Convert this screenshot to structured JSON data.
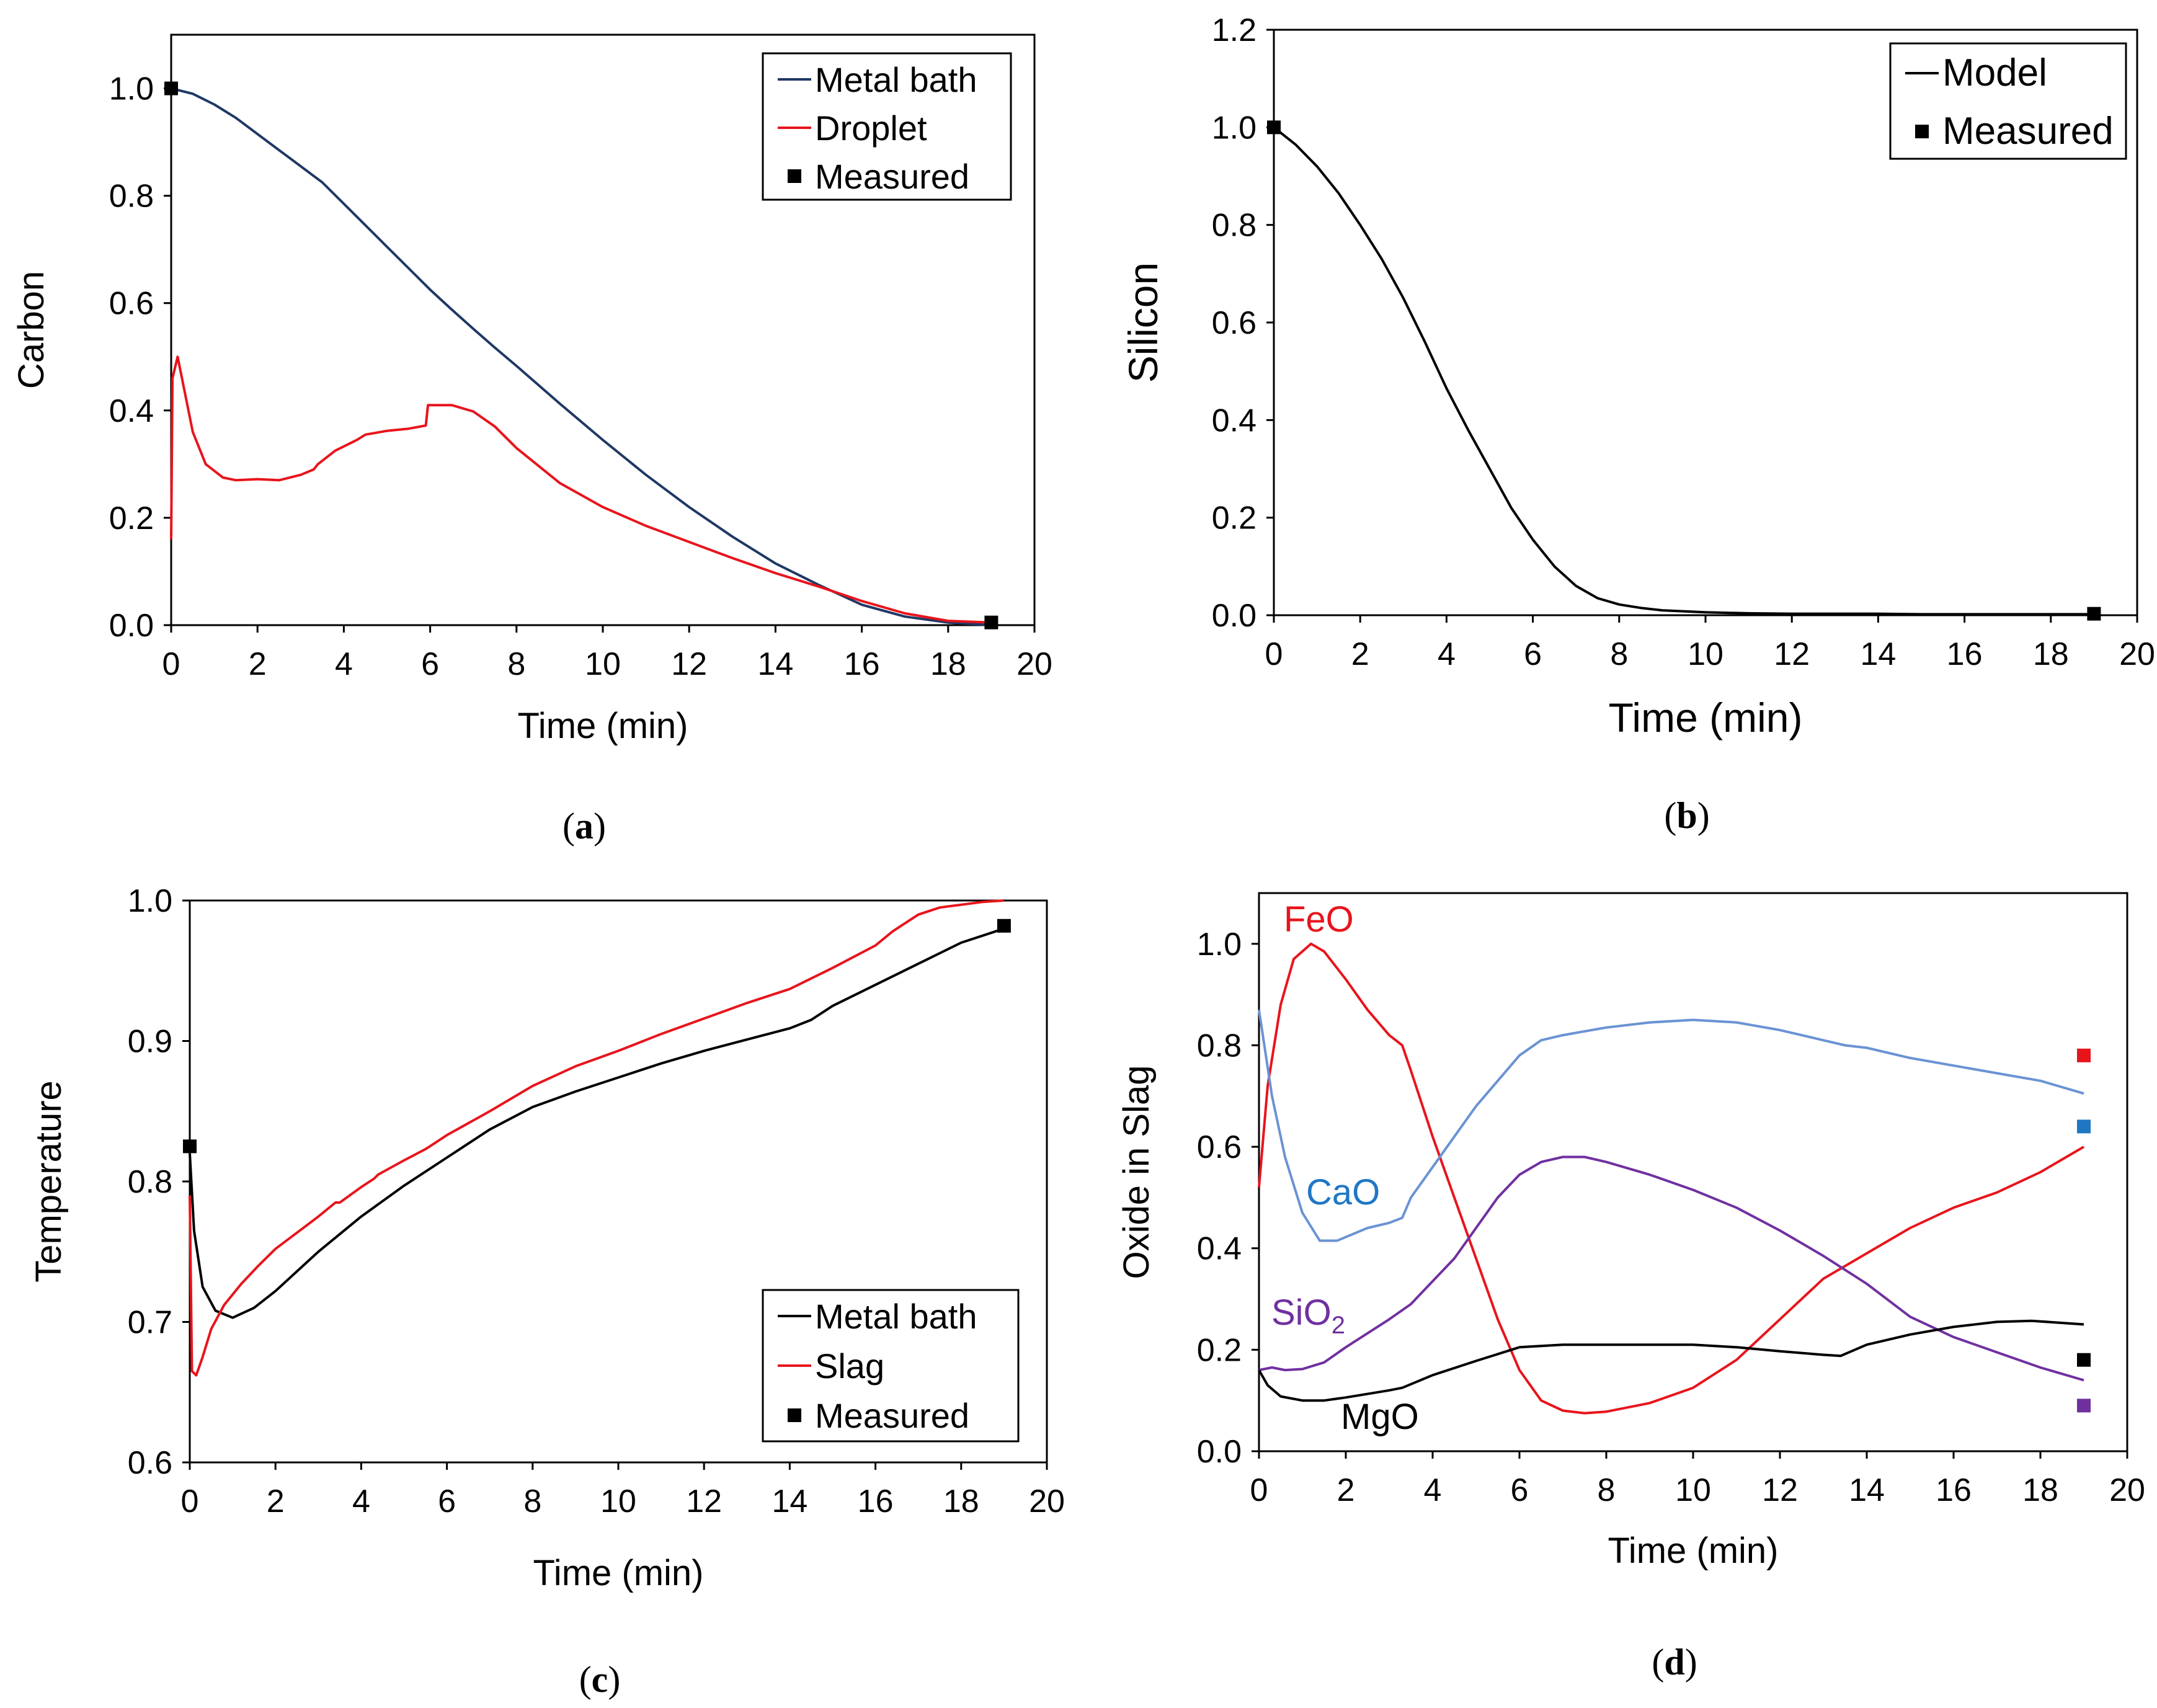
{
  "colors": {
    "navy": "#1f3864",
    "red": "#e8141c",
    "black": "#000000",
    "lightblue": "#6a93d4",
    "purple": "#7030a0",
    "marker_blue": "#1f77c4"
  },
  "chart_data": [
    {
      "type": "line",
      "panel": "(a)",
      "caption_letter": "a",
      "xlabel": "Time (min)",
      "ylabel": "Carbon",
      "xlim": [
        0,
        20
      ],
      "ylim": [
        0,
        1.1
      ],
      "x_ticks": [
        "0",
        "2",
        "4",
        "6",
        "8",
        "10",
        "12",
        "14",
        "16",
        "18",
        "20"
      ],
      "y_ticks": [
        "0.0",
        "0.2",
        "0.4",
        "0.6",
        "0.8",
        "1.0"
      ],
      "legend_position": "top-right",
      "series": [
        {
          "name": "Metal bath",
          "color": "#1f3864",
          "x": [
            0,
            0.5,
            1,
            1.5,
            2,
            2.5,
            3,
            3.5,
            4,
            4.5,
            5,
            5.5,
            6,
            6.5,
            7,
            7.5,
            8,
            9,
            10,
            11,
            12,
            13,
            14,
            15,
            16,
            17,
            18,
            19
          ],
          "y": [
            1.0,
            0.99,
            0.97,
            0.945,
            0.915,
            0.885,
            0.855,
            0.825,
            0.785,
            0.745,
            0.705,
            0.665,
            0.625,
            0.588,
            0.552,
            0.517,
            0.483,
            0.413,
            0.345,
            0.28,
            0.22,
            0.165,
            0.115,
            0.075,
            0.038,
            0.016,
            0.005,
            0.0
          ]
        },
        {
          "name": "Droplet",
          "color": "#e8141c",
          "x": [
            0,
            0.03,
            0.15,
            0.3,
            0.5,
            0.8,
            1.2,
            1.5,
            2,
            2.5,
            3,
            3.3,
            3.4,
            3.8,
            4.3,
            4.5,
            5,
            5.5,
            5.9,
            5.95,
            6.5,
            7,
            7.5,
            8,
            9,
            10,
            11,
            12,
            13,
            14,
            15,
            16,
            17,
            18,
            19
          ],
          "y": [
            0.16,
            0.46,
            0.5,
            0.44,
            0.36,
            0.3,
            0.275,
            0.27,
            0.272,
            0.27,
            0.28,
            0.29,
            0.3,
            0.325,
            0.345,
            0.355,
            0.362,
            0.366,
            0.372,
            0.41,
            0.41,
            0.398,
            0.37,
            0.33,
            0.265,
            0.22,
            0.185,
            0.155,
            0.125,
            0.097,
            0.072,
            0.045,
            0.022,
            0.008,
            0.005
          ]
        }
      ],
      "measured": {
        "name": "Measured",
        "x": [
          0,
          19
        ],
        "y": [
          1.0,
          0.005
        ]
      }
    },
    {
      "type": "line",
      "panel": "(b)",
      "caption_letter": "b",
      "xlabel": "Time (min)",
      "ylabel": "Silicon",
      "xlim": [
        0,
        20
      ],
      "ylim": [
        0,
        1.2
      ],
      "x_ticks": [
        "0",
        "2",
        "4",
        "6",
        "8",
        "10",
        "12",
        "14",
        "16",
        "18",
        "20"
      ],
      "y_ticks": [
        "0.0",
        "0.2",
        "0.4",
        "0.6",
        "0.8",
        "1.0",
        "1.2"
      ],
      "legend_position": "top-right",
      "series": [
        {
          "name": "Model",
          "color": "#000000",
          "x": [
            0,
            0.5,
            1,
            1.5,
            2,
            2.5,
            3,
            3.5,
            4,
            4.5,
            5,
            5.5,
            6,
            6.5,
            7,
            7.5,
            8,
            8.5,
            9,
            10,
            11,
            12,
            13,
            14,
            15,
            16,
            17,
            18,
            19
          ],
          "y": [
            1.0,
            0.965,
            0.92,
            0.865,
            0.8,
            0.73,
            0.65,
            0.56,
            0.465,
            0.38,
            0.3,
            0.22,
            0.155,
            0.1,
            0.06,
            0.035,
            0.022,
            0.015,
            0.01,
            0.006,
            0.004,
            0.003,
            0.003,
            0.003,
            0.002,
            0.002,
            0.002,
            0.002,
            0.002
          ]
        }
      ],
      "measured": {
        "name": "Measured",
        "x": [
          0,
          19
        ],
        "y": [
          1.0,
          0.003
        ]
      }
    },
    {
      "type": "line",
      "panel": "(c)",
      "caption_letter": "c",
      "xlabel": "Time (min)",
      "ylabel": "Temperature",
      "xlim": [
        0,
        20
      ],
      "ylim": [
        0.6,
        1.0
      ],
      "x_ticks": [
        "0",
        "2",
        "4",
        "6",
        "8",
        "10",
        "12",
        "14",
        "16",
        "18",
        "20"
      ],
      "y_ticks": [
        "0.6",
        "0.7",
        "0.8",
        "0.9",
        "1.0"
      ],
      "legend_position": "bottom-right",
      "series": [
        {
          "name": "Metal bath",
          "color": "#000000",
          "x": [
            0,
            0.1,
            0.3,
            0.6,
            1,
            1.5,
            2,
            3,
            4,
            5,
            6,
            7,
            8,
            9,
            10,
            11,
            12,
            13,
            14,
            14.5,
            15,
            16,
            17,
            18,
            19
          ],
          "y": [
            0.82,
            0.765,
            0.725,
            0.708,
            0.703,
            0.71,
            0.722,
            0.75,
            0.775,
            0.797,
            0.817,
            0.837,
            0.853,
            0.864,
            0.874,
            0.884,
            0.893,
            0.901,
            0.909,
            0.915,
            0.925,
            0.94,
            0.955,
            0.97,
            0.98
          ]
        },
        {
          "name": "Slag",
          "color": "#e8141c",
          "x": [
            0,
            0.05,
            0.15,
            0.3,
            0.5,
            0.8,
            1.2,
            1.6,
            2,
            3,
            3.4,
            3.5,
            4,
            4.3,
            4.4,
            5,
            5.5,
            5.6,
            6,
            7,
            8,
            9,
            10,
            11,
            12,
            13,
            13.8,
            14,
            15,
            16,
            16.4,
            17,
            17.5,
            18,
            18.5,
            19
          ],
          "y": [
            0.79,
            0.665,
            0.662,
            0.675,
            0.695,
            0.712,
            0.727,
            0.74,
            0.752,
            0.775,
            0.785,
            0.785,
            0.796,
            0.802,
            0.805,
            0.815,
            0.823,
            0.825,
            0.833,
            0.85,
            0.868,
            0.882,
            0.893,
            0.905,
            0.916,
            0.927,
            0.935,
            0.937,
            0.952,
            0.968,
            0.978,
            0.99,
            0.995,
            0.997,
            0.999,
            1.0
          ]
        }
      ],
      "measured": {
        "name": "Measured",
        "x": [
          0,
          19
        ],
        "y": [
          0.825,
          0.982
        ]
      }
    },
    {
      "type": "line",
      "panel": "(d)",
      "caption_letter": "d",
      "xlabel": "Time (min)",
      "ylabel": "Oxide in Slag",
      "xlim": [
        0,
        20
      ],
      "ylim": [
        0,
        1.1
      ],
      "x_ticks": [
        "0",
        "2",
        "4",
        "6",
        "8",
        "10",
        "12",
        "14",
        "16",
        "18",
        "20"
      ],
      "y_ticks": [
        "0.0",
        "0.2",
        "0.4",
        "0.6",
        "0.8",
        "1.0"
      ],
      "annotations": {
        "FeO": "FeO",
        "CaO": "CaO",
        "SiO": "SiO",
        "SiO_sub": "2",
        "MgO": "MgO"
      },
      "series": [
        {
          "name": "FeO",
          "color": "#e8141c",
          "x": [
            0,
            0.2,
            0.5,
            0.8,
            1.2,
            1.5,
            2,
            2.5,
            3,
            3.3,
            3.5,
            4,
            4.5,
            5,
            5.5,
            6,
            6.5,
            7,
            7.5,
            8,
            9,
            10,
            11,
            12,
            13,
            14,
            15,
            16,
            17,
            18,
            19
          ],
          "y": [
            0.52,
            0.72,
            0.88,
            0.97,
            1.0,
            0.985,
            0.93,
            0.87,
            0.82,
            0.8,
            0.75,
            0.62,
            0.5,
            0.38,
            0.26,
            0.16,
            0.1,
            0.08,
            0.075,
            0.078,
            0.095,
            0.125,
            0.18,
            0.26,
            0.34,
            0.39,
            0.44,
            0.48,
            0.51,
            0.55,
            0.6
          ]
        },
        {
          "name": "CaO",
          "color": "#6a93d4",
          "x": [
            0,
            0.3,
            0.6,
            1,
            1.4,
            1.8,
            2.5,
            3,
            3.3,
            3.5,
            4,
            4.5,
            5,
            5.5,
            6,
            6.5,
            7,
            8,
            9,
            10,
            11,
            12,
            13,
            13.5,
            14,
            15,
            16,
            17,
            18,
            19
          ],
          "y": [
            0.87,
            0.7,
            0.58,
            0.47,
            0.415,
            0.415,
            0.44,
            0.45,
            0.46,
            0.5,
            0.56,
            0.62,
            0.68,
            0.73,
            0.78,
            0.81,
            0.82,
            0.835,
            0.845,
            0.85,
            0.845,
            0.83,
            0.81,
            0.8,
            0.795,
            0.775,
            0.76,
            0.745,
            0.73,
            0.705
          ]
        },
        {
          "name": "SiO2",
          "color": "#7030a0",
          "x": [
            0,
            0.3,
            0.6,
            1,
            1.5,
            2,
            3,
            3.5,
            4,
            4.5,
            5,
            5.5,
            6,
            6.5,
            7,
            7.5,
            8,
            9,
            10,
            11,
            12,
            13,
            14,
            15,
            16,
            17,
            18,
            19
          ],
          "y": [
            0.16,
            0.165,
            0.16,
            0.162,
            0.175,
            0.205,
            0.26,
            0.29,
            0.335,
            0.38,
            0.44,
            0.5,
            0.545,
            0.57,
            0.58,
            0.58,
            0.57,
            0.545,
            0.515,
            0.48,
            0.435,
            0.385,
            0.33,
            0.265,
            0.225,
            0.195,
            0.165,
            0.14
          ]
        },
        {
          "name": "MgO",
          "color": "#000000",
          "x": [
            0,
            0.2,
            0.5,
            1,
            1.5,
            2,
            3,
            3.3,
            4,
            5,
            6,
            7,
            8,
            9,
            10,
            11,
            12,
            13,
            13.4,
            14,
            15,
            16,
            17,
            17.8,
            19
          ],
          "y": [
            0.16,
            0.13,
            0.108,
            0.1,
            0.1,
            0.106,
            0.12,
            0.125,
            0.15,
            0.178,
            0.205,
            0.21,
            0.21,
            0.21,
            0.21,
            0.205,
            0.197,
            0.19,
            0.188,
            0.21,
            0.23,
            0.245,
            0.255,
            0.257,
            0.25
          ]
        }
      ],
      "measured": [
        {
          "name": "FeO",
          "color": "#e8141c",
          "x": 19,
          "y": 0.78
        },
        {
          "name": "CaO",
          "color": "#1f77c4",
          "x": 19,
          "y": 0.64
        },
        {
          "name": "MgO",
          "color": "#000000",
          "x": 19,
          "y": 0.18
        },
        {
          "name": "SiO2",
          "color": "#7030a0",
          "x": 19,
          "y": 0.09
        }
      ]
    }
  ]
}
